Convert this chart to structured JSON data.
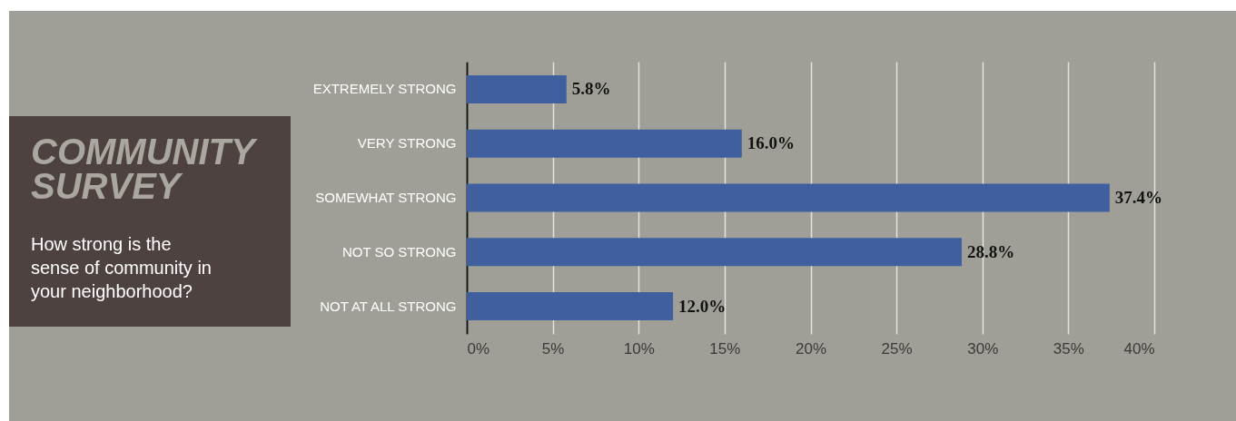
{
  "chart_data": {
    "type": "bar",
    "orientation": "horizontal",
    "title": "COMMUNITY SURVEY",
    "subtitle": "How strong is the sense of community in your neighborhood?",
    "categories": [
      "EXTREMELY STRONG",
      "VERY STRONG",
      "SOMEWHAT STRONG",
      "NOT SO STRONG",
      "NOT AT ALL STRONG"
    ],
    "values": [
      5.8,
      16.0,
      37.4,
      28.8,
      12.0
    ],
    "color": "#3f5f9f",
    "value_labels": [
      "5.8%",
      "16.0%",
      "37.4%",
      "28.8%",
      "12.0%"
    ],
    "xlim": [
      0,
      40
    ],
    "xticks": [
      {
        "value": 0,
        "label": "0%"
      },
      {
        "value": 5,
        "label": "5%"
      },
      {
        "value": 10,
        "label": "10%"
      },
      {
        "value": 15,
        "label": "15%"
      },
      {
        "value": 20,
        "label": "20%"
      },
      {
        "value": 25,
        "label": "25%"
      },
      {
        "value": 30,
        "label": "30%"
      },
      {
        "value": 35,
        "label": "35%"
      },
      {
        "value": 40,
        "label": "40%"
      }
    ],
    "grid": "x"
  }
}
